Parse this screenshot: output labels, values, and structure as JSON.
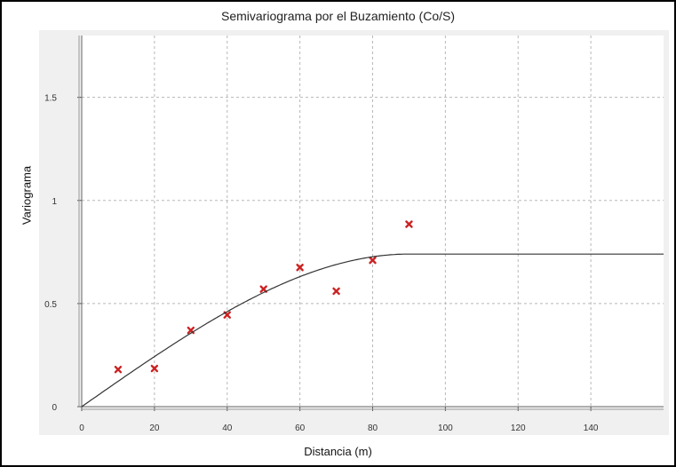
{
  "chart_data": {
    "type": "scatter",
    "title": "Semivariograma por el Buzamiento (Co/S)",
    "xlabel": "Distancia (m)",
    "ylabel": "Variograma",
    "xlim": [
      0,
      160
    ],
    "ylim": [
      0,
      1.8
    ],
    "x_ticks": [
      "0",
      "20",
      "40",
      "60",
      "80",
      "100",
      "120",
      "140"
    ],
    "y_ticks": [
      "0",
      "0.5",
      "1",
      "1.5"
    ],
    "grid": true,
    "series": [
      {
        "kind": "points",
        "marker": "x",
        "color": "#cc2222",
        "x": [
          10,
          20,
          30,
          40,
          50,
          60,
          70,
          80,
          90
        ],
        "y": [
          0.18,
          0.185,
          0.37,
          0.445,
          0.57,
          0.675,
          0.56,
          0.71,
          0.885
        ]
      },
      {
        "kind": "model-curve",
        "color": "#333333",
        "model": "spherical",
        "nugget": 0,
        "sill": 0.74,
        "range": 90
      }
    ]
  }
}
